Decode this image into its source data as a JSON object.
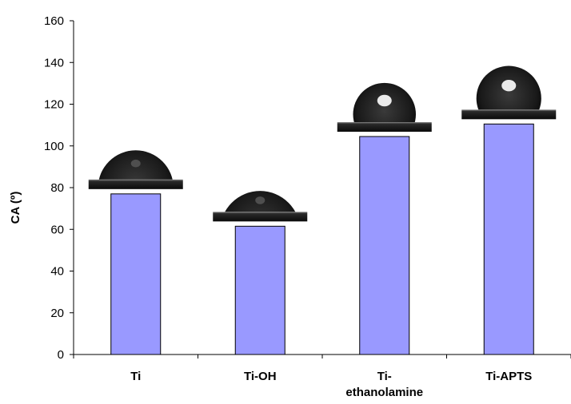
{
  "chart_data": {
    "type": "bar",
    "title": "",
    "xlabel": "",
    "ylabel": "CA (º)",
    "ylim": [
      0,
      160
    ],
    "yticks": [
      0,
      20,
      40,
      60,
      80,
      100,
      120,
      140,
      160
    ],
    "categories": [
      [
        "Ti"
      ],
      [
        "Ti-OH"
      ],
      [
        "Ti-",
        "ethanolamine"
      ],
      [
        "Ti-APTS"
      ]
    ],
    "values": [
      77,
      61.5,
      104.5,
      110.5
    ],
    "grid": false,
    "legend": "none",
    "colors": {
      "bar_fill": "#9999ff",
      "bar_stroke": "#000000",
      "axis": "#000000",
      "droplet": "#1c1c1c",
      "substrate": "#111111",
      "background": "#ffffff"
    }
  }
}
